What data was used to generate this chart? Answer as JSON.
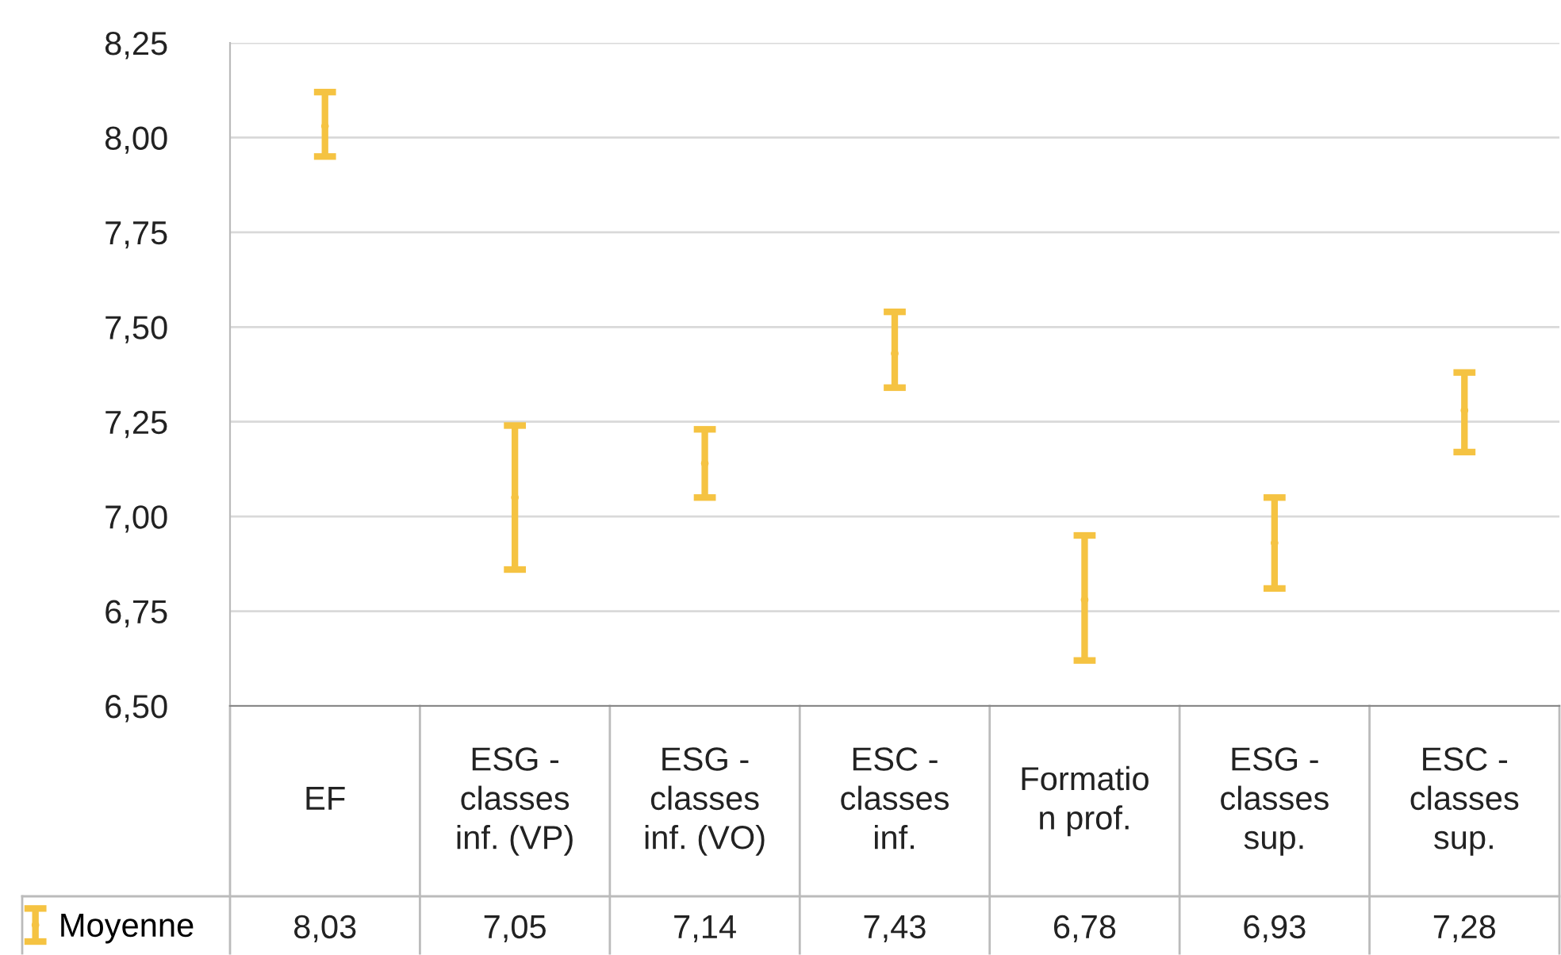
{
  "chart_data": {
    "type": "scatter",
    "marker": "none",
    "categories": [
      "EF",
      "ESG -\nclasses\ninf. (VP)",
      "ESG -\nclasses\ninf. (VO)",
      "ESC -\nclasses\ninf.",
      "Formatio\nn prof.",
      "ESG -\nclasses\nsup.",
      "ESC -\nclasses\nsup."
    ],
    "series": [
      {
        "name": "Moyenne",
        "color": "#f5c342",
        "values": [
          8.03,
          7.05,
          7.14,
          7.43,
          6.78,
          6.93,
          7.28
        ],
        "errors": [
          [
            7.95,
            8.12
          ],
          [
            6.86,
            7.24
          ],
          [
            7.05,
            7.23
          ],
          [
            7.34,
            7.54
          ],
          [
            6.62,
            6.95
          ],
          [
            6.81,
            7.05
          ],
          [
            7.17,
            7.38
          ]
        ],
        "value_labels": [
          "8,03",
          "7,05",
          "7,14",
          "7,43",
          "6,78",
          "6,93",
          "7,28"
        ]
      }
    ],
    "ylim": [
      6.5,
      8.25
    ],
    "yticks": [
      {
        "value": 6.5,
        "label": "6,50"
      },
      {
        "value": 6.75,
        "label": "6,75"
      },
      {
        "value": 7.0,
        "label": "7,00"
      },
      {
        "value": 7.25,
        "label": "7,25"
      },
      {
        "value": 7.5,
        "label": "7,50"
      },
      {
        "value": 7.75,
        "label": "7,75"
      },
      {
        "value": 8.0,
        "label": "8,00"
      },
      {
        "value": 8.25,
        "label": "8,25"
      }
    ],
    "grid": "y",
    "legend": "bottom left"
  }
}
